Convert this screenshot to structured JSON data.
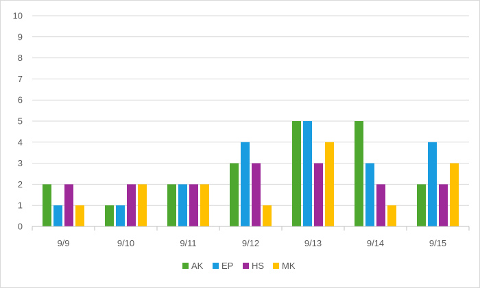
{
  "chart_data": {
    "type": "bar",
    "title": "",
    "xlabel": "",
    "ylabel": "",
    "categories": [
      "9/9",
      "9/10",
      "9/11",
      "9/12",
      "9/13",
      "9/14",
      "9/15"
    ],
    "series": [
      {
        "name": "AK",
        "color": "#4ea72e",
        "values": [
          2,
          1,
          2,
          3,
          5,
          5,
          2
        ]
      },
      {
        "name": "EP",
        "color": "#1a9de0",
        "values": [
          1,
          1,
          2,
          4,
          5,
          3,
          4
        ]
      },
      {
        "name": "HS",
        "color": "#9e2a9a",
        "values": [
          2,
          2,
          2,
          3,
          3,
          2,
          2
        ]
      },
      {
        "name": "MK",
        "color": "#ffc000",
        "values": [
          1,
          2,
          2,
          1,
          4,
          1,
          3
        ]
      }
    ],
    "ylim": [
      0,
      10
    ],
    "yticks": [
      0,
      1,
      2,
      3,
      4,
      5,
      6,
      7,
      8,
      9,
      10
    ],
    "grid": true,
    "legend": "bottom"
  }
}
